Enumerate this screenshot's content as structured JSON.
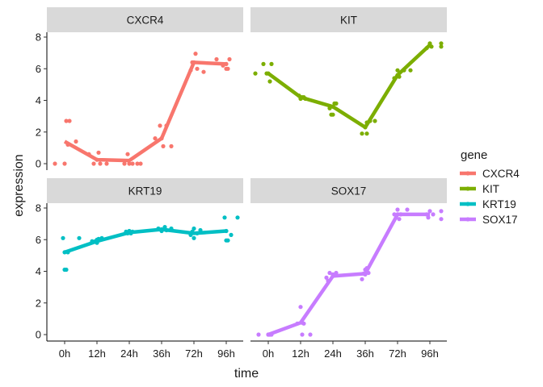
{
  "chart_data": {
    "type": "line",
    "title": "",
    "xlabel": "time",
    "ylabel": "expression",
    "categories": [
      "0h",
      "12h",
      "24h",
      "36h",
      "72h",
      "96h"
    ],
    "ylim": [
      0,
      8
    ],
    "yticks": [
      0,
      2,
      4,
      6,
      8
    ],
    "grid": false,
    "legend": {
      "title": "gene",
      "position": "right"
    },
    "series": [
      {
        "name": "CXCR4",
        "color": "#F8766D",
        "mean": [
          1.4,
          0.25,
          0.2,
          1.6,
          6.4,
          6.3
        ],
        "points": [
          [
            [
              -0.3,
              0.0
            ],
            [
              0.0,
              0.0
            ],
            [
              0.05,
              2.7
            ],
            [
              0.1,
              1.2
            ],
            [
              0.15,
              2.7
            ],
            [
              0.35,
              1.4
            ]
          ],
          [
            [
              -0.25,
              0.6
            ],
            [
              -0.1,
              0.0
            ],
            [
              0.0,
              0.25
            ],
            [
              0.05,
              0.7
            ],
            [
              0.1,
              0.0
            ],
            [
              0.3,
              0.0
            ]
          ],
          [
            [
              -0.15,
              0.0
            ],
            [
              -0.05,
              0.6
            ],
            [
              0.0,
              0.0
            ],
            [
              0.1,
              0.0
            ],
            [
              0.25,
              0.0
            ],
            [
              0.35,
              0.0
            ]
          ],
          [
            [
              -0.2,
              1.6
            ],
            [
              -0.05,
              2.4
            ],
            [
              0.05,
              1.1
            ],
            [
              0.15,
              2.4
            ],
            [
              0.3,
              1.1
            ],
            [
              0.0,
              1.6
            ]
          ],
          [
            [
              -0.1,
              5.9
            ],
            [
              0.0,
              6.4
            ],
            [
              0.05,
              6.95
            ],
            [
              0.1,
              6.0
            ],
            [
              0.3,
              5.8
            ],
            [
              -0.05,
              6.4
            ]
          ],
          [
            [
              -0.3,
              6.6
            ],
            [
              -0.1,
              6.2
            ],
            [
              0.0,
              6.0
            ],
            [
              0.1,
              6.6
            ],
            [
              0.0,
              6.3
            ],
            [
              0.05,
              6.0
            ]
          ]
        ]
      },
      {
        "name": "KIT",
        "color": "#7CAE00",
        "mean": [
          5.7,
          4.2,
          3.6,
          2.3,
          5.6,
          7.5
        ],
        "points": [
          [
            [
              -0.4,
              5.7
            ],
            [
              -0.15,
              6.3
            ],
            [
              0.05,
              5.2
            ],
            [
              0.1,
              6.3
            ],
            [
              0.0,
              5.7
            ],
            [
              -0.05,
              5.7
            ]
          ],
          [
            [
              -0.05,
              4.3
            ],
            [
              0.0,
              4.1
            ],
            [
              0.05,
              4.2
            ],
            [
              0.1,
              4.2
            ],
            [
              0.15,
              4.1
            ],
            [
              0.0,
              4.2
            ]
          ],
          [
            [
              -0.05,
              3.1
            ],
            [
              0.05,
              3.8
            ],
            [
              0.1,
              3.8
            ],
            [
              0.0,
              3.6
            ],
            [
              -0.1,
              3.5
            ],
            [
              0.0,
              3.1
            ]
          ],
          [
            [
              -0.1,
              1.9
            ],
            [
              0.05,
              1.9
            ],
            [
              0.15,
              2.7
            ],
            [
              0.3,
              2.7
            ],
            [
              0.0,
              2.3
            ],
            [
              0.05,
              2.6
            ]
          ],
          [
            [
              -0.1,
              5.4
            ],
            [
              0.0,
              5.9
            ],
            [
              0.05,
              5.5
            ],
            [
              0.2,
              5.9
            ],
            [
              0.4,
              5.9
            ],
            [
              0.0,
              5.6
            ]
          ],
          [
            [
              -0.1,
              7.3
            ],
            [
              0.0,
              7.6
            ],
            [
              0.05,
              7.4
            ],
            [
              0.35,
              7.6
            ],
            [
              0.35,
              7.4
            ],
            [
              0.0,
              7.5
            ]
          ]
        ]
      },
      {
        "name": "KRT19",
        "color": "#00BFC4",
        "mean": [
          5.2,
          5.9,
          6.45,
          6.65,
          6.4,
          6.55
        ],
        "points": [
          [
            [
              -0.05,
              6.1
            ],
            [
              0.0,
              4.1
            ],
            [
              0.05,
              4.1
            ],
            [
              0.45,
              6.1
            ],
            [
              0.0,
              5.2
            ],
            [
              0.1,
              5.2
            ]
          ],
          [
            [
              -0.15,
              5.9
            ],
            [
              0.0,
              5.8
            ],
            [
              0.05,
              6.05
            ],
            [
              0.15,
              6.1
            ],
            [
              0.0,
              6.0
            ],
            [
              -0.05,
              5.9
            ]
          ],
          [
            [
              -0.05,
              6.4
            ],
            [
              0.0,
              6.55
            ],
            [
              0.1,
              6.5
            ],
            [
              0.0,
              6.45
            ],
            [
              0.05,
              6.4
            ],
            [
              -0.1,
              6.5
            ]
          ],
          [
            [
              -0.1,
              6.7
            ],
            [
              0.0,
              6.55
            ],
            [
              0.1,
              6.8
            ],
            [
              0.3,
              6.7
            ],
            [
              0.15,
              6.6
            ],
            [
              0.0,
              6.65
            ]
          ],
          [
            [
              -0.1,
              6.3
            ],
            [
              0.0,
              6.7
            ],
            [
              0.0,
              6.1
            ],
            [
              0.2,
              6.6
            ],
            [
              0.1,
              6.4
            ],
            [
              -0.05,
              6.5
            ]
          ],
          [
            [
              -0.05,
              7.4
            ],
            [
              0.0,
              5.95
            ],
            [
              0.05,
              5.95
            ],
            [
              0.15,
              6.3
            ],
            [
              0.35,
              7.4
            ],
            [
              0.0,
              6.55
            ]
          ]
        ]
      },
      {
        "name": "SOX17",
        "color": "#C77CFF",
        "mean": [
          0.0,
          0.75,
          3.7,
          3.85,
          7.6,
          7.6
        ],
        "points": [
          [
            [
              -0.3,
              0.0
            ],
            [
              0.0,
              0.0
            ],
            [
              0.05,
              0.0
            ],
            [
              0.1,
              0.0
            ],
            [
              0.0,
              0.0
            ],
            [
              0.05,
              0.0
            ]
          ],
          [
            [
              -0.1,
              0.7
            ],
            [
              0.0,
              1.75
            ],
            [
              0.05,
              0.0
            ],
            [
              0.1,
              0.7
            ],
            [
              0.3,
              0.0
            ],
            [
              0.05,
              0.75
            ]
          ],
          [
            [
              -0.2,
              3.6
            ],
            [
              -0.1,
              3.9
            ],
            [
              0.0,
              3.8
            ],
            [
              0.1,
              3.9
            ],
            [
              -0.15,
              3.4
            ],
            [
              0.0,
              3.7
            ]
          ],
          [
            [
              -0.1,
              3.5
            ],
            [
              0.0,
              4.1
            ],
            [
              0.05,
              4.2
            ],
            [
              0.1,
              3.9
            ],
            [
              0.0,
              3.8
            ],
            [
              -0.05,
              3.85
            ]
          ],
          [
            [
              -0.1,
              7.6
            ],
            [
              0.0,
              7.9
            ],
            [
              0.05,
              7.3
            ],
            [
              0.1,
              7.6
            ],
            [
              0.3,
              7.9
            ],
            [
              0.0,
              7.6
            ]
          ],
          [
            [
              -0.1,
              7.6
            ],
            [
              -0.05,
              7.4
            ],
            [
              0.0,
              7.8
            ],
            [
              0.1,
              7.6
            ],
            [
              0.35,
              7.8
            ],
            [
              0.35,
              7.3
            ]
          ]
        ]
      }
    ],
    "facets": [
      "CXCR4",
      "KIT",
      "KRT19",
      "SOX17"
    ]
  }
}
